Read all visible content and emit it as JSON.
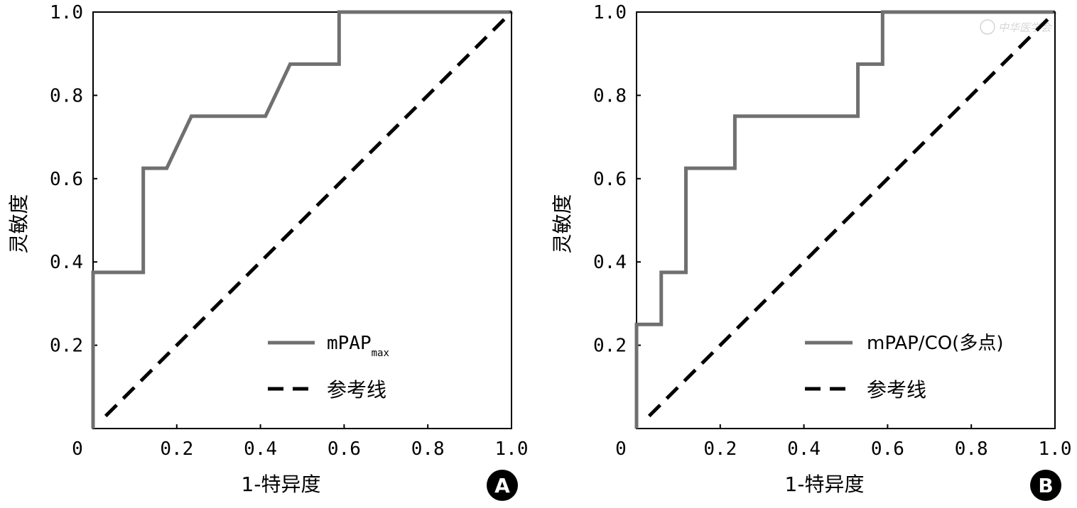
{
  "watermark": "中华医学会",
  "chart_data": [
    {
      "type": "line",
      "panel_label": "A",
      "xlabel": "1-特异度",
      "ylabel": "灵敏度",
      "xlim": [
        0,
        1
      ],
      "ylim": [
        0,
        1
      ],
      "x_ticks": [
        "0",
        "0.2",
        "0.4",
        "0.6",
        "0.8",
        "1.0"
      ],
      "y_ticks": [
        "0.2",
        "0.4",
        "0.6",
        "0.8",
        "1.0"
      ],
      "legend_position": "bottom-right",
      "series": [
        {
          "name": "mPAP",
          "name_sub": "max",
          "color": "#707070",
          "style": "solid",
          "x": [
            0,
            0,
            0.12,
            0.12,
            0.176,
            0.235,
            0.412,
            0.471,
            0.588,
            0.588,
            1.0
          ],
          "y": [
            0,
            0.375,
            0.375,
            0.625,
            0.625,
            0.75,
            0.75,
            0.875,
            0.875,
            1.0,
            1.0
          ]
        },
        {
          "name": "参考线",
          "color": "#000000",
          "style": "dashed",
          "x": [
            0.03,
            1.0
          ],
          "y": [
            0.03,
            1.0
          ]
        }
      ]
    },
    {
      "type": "line",
      "panel_label": "B",
      "xlabel": "1-特异度",
      "ylabel": "灵敏度",
      "xlim": [
        0,
        1
      ],
      "ylim": [
        0,
        1
      ],
      "x_ticks": [
        "0",
        "0.2",
        "0.4",
        "0.6",
        "0.8",
        "1.0"
      ],
      "y_ticks": [
        "0.2",
        "0.4",
        "0.6",
        "0.8",
        "1.0"
      ],
      "legend_position": "bottom-right",
      "series": [
        {
          "name": "mPAP/CO(多点)",
          "name_sub": "",
          "color": "#707070",
          "style": "solid",
          "x": [
            0,
            0,
            0.059,
            0.059,
            0.118,
            0.118,
            0.235,
            0.235,
            0.529,
            0.529,
            0.588,
            0.588,
            1.0
          ],
          "y": [
            0,
            0.25,
            0.25,
            0.375,
            0.375,
            0.625,
            0.625,
            0.75,
            0.75,
            0.875,
            0.875,
            1.0,
            1.0
          ]
        },
        {
          "name": "参考线",
          "color": "#000000",
          "style": "dashed",
          "x": [
            0.03,
            1.0
          ],
          "y": [
            0.03,
            1.0
          ]
        }
      ]
    }
  ]
}
